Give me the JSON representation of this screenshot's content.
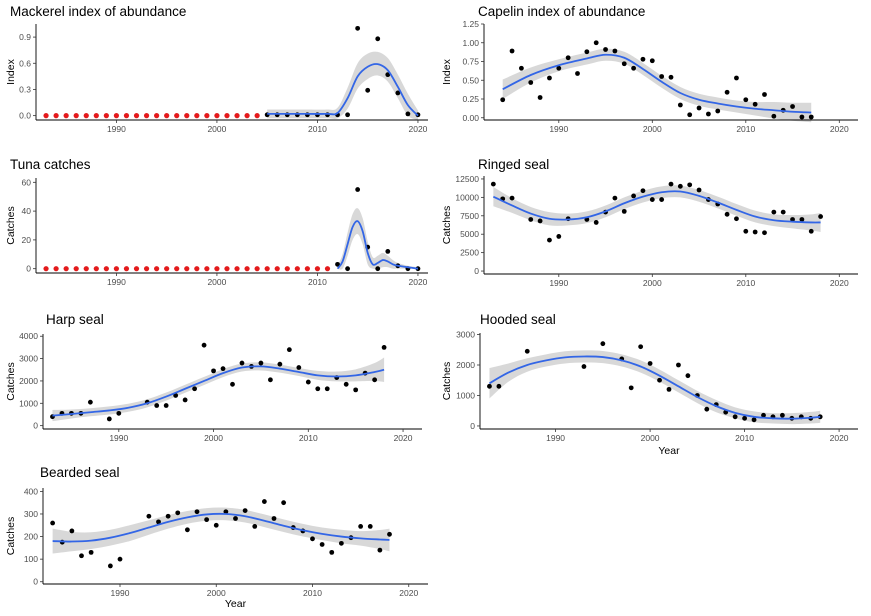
{
  "colors": {
    "smooth_line": "#3366e6",
    "confidence_band": "#d4d4d4",
    "observed_point": "#000000",
    "missing_point": "#e41a1c",
    "axis": "#000000"
  },
  "chart_data": [
    {
      "type": "scatter",
      "title": "Mackerel index of abundance",
      "xlabel": "",
      "ylabel": "Index",
      "xlim": [
        1982,
        2021
      ],
      "ylim": [
        -0.05,
        1.05
      ],
      "xticks": [
        1990,
        2000,
        2010,
        2020
      ],
      "yticks": [
        0.0,
        0.3,
        0.6,
        0.9
      ],
      "ytick_labels": [
        "0.0",
        "0.3",
        "0.6",
        "0.9"
      ],
      "grid": false,
      "missing_points": {
        "x": [
          1983,
          1984,
          1985,
          1986,
          1987,
          1988,
          1989,
          1990,
          1991,
          1992,
          1993,
          1994,
          1995,
          1996,
          1997,
          1998,
          1999,
          2000,
          2001,
          2002,
          2003,
          2004
        ],
        "y_baseline": 0
      },
      "points": {
        "x": [
          2005,
          2006,
          2007,
          2008,
          2009,
          2010,
          2011,
          2012,
          2013,
          2014,
          2015,
          2016,
          2017,
          2018,
          2019,
          2020
        ],
        "y": [
          0.01,
          0.01,
          0.01,
          0.01,
          0.01,
          0.01,
          0.01,
          0.01,
          0.01,
          1.0,
          0.29,
          0.88,
          0.47,
          0.26,
          0.02,
          0.01
        ]
      },
      "smooth": {
        "x": [
          2005,
          2007,
          2009,
          2011,
          2012,
          2013,
          2014,
          2015,
          2016,
          2017,
          2018,
          2019,
          2020
        ],
        "y": [
          0.02,
          0.02,
          0.02,
          0.02,
          0.03,
          0.2,
          0.45,
          0.56,
          0.59,
          0.52,
          0.33,
          0.12,
          0.0
        ],
        "lower": [
          -0.03,
          -0.03,
          -0.03,
          -0.03,
          -0.03,
          0.08,
          0.31,
          0.42,
          0.46,
          0.39,
          0.2,
          0.0,
          -0.05
        ],
        "upper": [
          0.07,
          0.07,
          0.07,
          0.07,
          0.09,
          0.32,
          0.6,
          0.71,
          0.73,
          0.66,
          0.47,
          0.25,
          0.06
        ]
      }
    },
    {
      "type": "scatter",
      "title": "Capelin index of abundance",
      "xlabel": "",
      "ylabel": "Index",
      "xlim": [
        1982,
        2022
      ],
      "ylim": [
        -0.03,
        1.25
      ],
      "xticks": [
        1990,
        2000,
        2010,
        2020
      ],
      "yticks": [
        0.0,
        0.25,
        0.5,
        0.75,
        1.0,
        1.25
      ],
      "ytick_labels": [
        "0.00",
        "0.25",
        "0.50",
        "0.75",
        "1.00",
        "1.25"
      ],
      "grid": false,
      "points": {
        "x": [
          1984,
          1985,
          1986,
          1987,
          1988,
          1989,
          1990,
          1991,
          1992,
          1993,
          1994,
          1995,
          1996,
          1997,
          1998,
          1999,
          2000,
          2001,
          2002,
          2003,
          2004,
          2005,
          2006,
          2007,
          2008,
          2009,
          2010,
          2011,
          2012,
          2013,
          2014,
          2015,
          2016,
          2017
        ],
        "y": [
          0.24,
          0.89,
          0.66,
          0.47,
          0.27,
          0.53,
          0.66,
          0.8,
          0.59,
          0.88,
          1.0,
          0.91,
          0.89,
          0.72,
          0.66,
          0.78,
          0.76,
          0.55,
          0.54,
          0.17,
          0.04,
          0.13,
          0.05,
          0.09,
          0.34,
          0.53,
          0.24,
          0.18,
          0.31,
          0.02,
          0.1,
          0.15,
          0.01,
          0.01
        ]
      },
      "smooth": {
        "x": [
          1984,
          1987,
          1990,
          1993,
          1995,
          1997,
          1999,
          2001,
          2003,
          2005,
          2007,
          2009,
          2011,
          2013,
          2015,
          2017
        ],
        "y": [
          0.38,
          0.57,
          0.7,
          0.79,
          0.84,
          0.8,
          0.65,
          0.48,
          0.33,
          0.24,
          0.19,
          0.15,
          0.12,
          0.1,
          0.08,
          0.07
        ],
        "lower": [
          0.25,
          0.47,
          0.62,
          0.71,
          0.76,
          0.72,
          0.57,
          0.4,
          0.25,
          0.16,
          0.11,
          0.07,
          0.03,
          -0.01,
          -0.04,
          -0.06
        ],
        "upper": [
          0.51,
          0.67,
          0.78,
          0.87,
          0.92,
          0.88,
          0.73,
          0.56,
          0.41,
          0.32,
          0.27,
          0.23,
          0.21,
          0.21,
          0.2,
          0.2
        ]
      }
    },
    {
      "type": "scatter",
      "title": "Tuna catches",
      "xlabel": "",
      "ylabel": "Catches",
      "xlim": [
        1982,
        2021
      ],
      "ylim": [
        -3,
        63
      ],
      "xticks": [
        1990,
        2000,
        2010,
        2020
      ],
      "yticks": [
        0,
        20,
        40,
        60
      ],
      "ytick_labels": [
        "0",
        "20",
        "40",
        "60"
      ],
      "grid": false,
      "missing_points": {
        "x": [
          1983,
          1984,
          1985,
          1986,
          1987,
          1988,
          1989,
          1990,
          1991,
          1992,
          1993,
          1994,
          1995,
          1996,
          1997,
          1998,
          1999,
          2000,
          2001,
          2002,
          2003,
          2004,
          2005,
          2006,
          2007,
          2008,
          2009,
          2010,
          2011
        ],
        "y_baseline": 0
      },
      "points": {
        "x": [
          2012,
          2013,
          2014,
          2015,
          2016,
          2017,
          2018,
          2019,
          2020
        ],
        "y": [
          3,
          0,
          55,
          15,
          0,
          12,
          2,
          0,
          0
        ]
      },
      "smooth": {
        "x": [
          2012,
          2012.5,
          2013,
          2013.5,
          2014,
          2014.5,
          2015,
          2015.5,
          2016,
          2016.5,
          2017,
          2017.5,
          2018,
          2019,
          2020
        ],
        "y": [
          0,
          5,
          17,
          29,
          33,
          26,
          11,
          3,
          4,
          6,
          5,
          3,
          2,
          1,
          0
        ],
        "lower": [
          0,
          0,
          9,
          20,
          24,
          17,
          3,
          0,
          0,
          1,
          1,
          0,
          0,
          0,
          0
        ],
        "upper": [
          2,
          10,
          25,
          38,
          42,
          35,
          19,
          8,
          9,
          11,
          9,
          6,
          4,
          2,
          1
        ]
      }
    },
    {
      "type": "scatter",
      "title": "Ringed seal",
      "xlabel": "",
      "ylabel": "Catches",
      "xlim": [
        1982,
        2022
      ],
      "ylim": [
        -400,
        12900
      ],
      "xticks": [
        1990,
        2000,
        2010,
        2020
      ],
      "yticks": [
        0,
        2500,
        5000,
        7500,
        10000,
        12500
      ],
      "ytick_labels": [
        "0",
        "2500",
        "5000",
        "7500",
        "10000",
        "12500"
      ],
      "grid": false,
      "points": {
        "x": [
          1983,
          1984,
          1985,
          1987,
          1988,
          1989,
          1990,
          1991,
          1993,
          1994,
          1995,
          1996,
          1997,
          1998,
          1999,
          2000,
          2001,
          2002,
          2003,
          2004,
          2005,
          2006,
          2007,
          2008,
          2009,
          2010,
          2011,
          2012,
          2013,
          2014,
          2015,
          2016,
          2017,
          2018
        ],
        "y": [
          11800,
          9800,
          9900,
          7000,
          6800,
          4200,
          4700,
          7100,
          7000,
          6600,
          8000,
          9900,
          8100,
          10200,
          10900,
          9700,
          9700,
          11800,
          11500,
          11700,
          11000,
          9700,
          9100,
          7700,
          7100,
          5400,
          5300,
          5200,
          8000,
          8000,
          7000,
          7000,
          5400,
          7400
        ]
      },
      "smooth": {
        "x": [
          1983,
          1985,
          1987,
          1989,
          1991,
          1993,
          1995,
          1997,
          1999,
          2001,
          2003,
          2005,
          2007,
          2009,
          2011,
          2013,
          2015,
          2017,
          2018
        ],
        "y": [
          10100,
          8900,
          7800,
          7100,
          7000,
          7300,
          8100,
          9200,
          10100,
          10700,
          10800,
          10200,
          9300,
          8300,
          7400,
          6900,
          6700,
          6600,
          6600
        ],
        "lower": [
          8800,
          7900,
          6900,
          6200,
          6200,
          6500,
          7300,
          8400,
          9300,
          9900,
          10000,
          9400,
          8500,
          7500,
          6600,
          6100,
          5800,
          5500,
          5300
        ],
        "upper": [
          11400,
          9900,
          8700,
          8000,
          7800,
          8100,
          8900,
          10000,
          10900,
          11500,
          11600,
          11000,
          10100,
          9100,
          8200,
          7700,
          7600,
          7700,
          7900
        ]
      }
    },
    {
      "type": "scatter",
      "title": "Harp seal",
      "xlabel": "",
      "ylabel": "Catches",
      "xlim": [
        1982,
        2022
      ],
      "ylim": [
        -150,
        4100
      ],
      "xticks": [
        1990,
        2000,
        2010,
        2020
      ],
      "yticks": [
        0,
        1000,
        2000,
        3000,
        4000
      ],
      "ytick_labels": [
        "0",
        "1000",
        "2000",
        "3000",
        "4000"
      ],
      "grid": false,
      "points": {
        "x": [
          1983,
          1984,
          1985,
          1986,
          1987,
          1989,
          1990,
          1993,
          1994,
          1995,
          1996,
          1997,
          1998,
          1999,
          2000,
          2001,
          2002,
          2003,
          2004,
          2005,
          2006,
          2007,
          2008,
          2009,
          2010,
          2011,
          2012,
          2013,
          2014,
          2015,
          2016,
          2017,
          2018
        ],
        "y": [
          400,
          550,
          550,
          550,
          1050,
          300,
          550,
          1050,
          900,
          900,
          1350,
          1150,
          1650,
          3600,
          2450,
          2550,
          1850,
          2800,
          2650,
          2800,
          2050,
          2750,
          3400,
          2600,
          1950,
          1650,
          1650,
          2150,
          1850,
          1600,
          2350,
          2050,
          3500
        ]
      },
      "smooth": {
        "x": [
          1983,
          1985,
          1987,
          1989,
          1991,
          1993,
          1995,
          1997,
          1999,
          2001,
          2003,
          2005,
          2007,
          2009,
          2011,
          2013,
          2015,
          2017,
          2018
        ],
        "y": [
          450,
          520,
          600,
          680,
          800,
          1000,
          1300,
          1650,
          2000,
          2350,
          2600,
          2650,
          2550,
          2400,
          2250,
          2200,
          2250,
          2400,
          2500
        ],
        "lower": [
          200,
          320,
          420,
          500,
          620,
          820,
          1120,
          1470,
          1820,
          2170,
          2420,
          2470,
          2370,
          2220,
          2050,
          1980,
          1980,
          2000,
          1950
        ],
        "upper": [
          700,
          720,
          780,
          860,
          980,
          1180,
          1480,
          1830,
          2180,
          2530,
          2780,
          2830,
          2730,
          2580,
          2450,
          2420,
          2520,
          2800,
          3050
        ]
      }
    },
    {
      "type": "scatter",
      "title": "Hooded seal",
      "xlabel": "Year",
      "ylabel": "Catches",
      "xlim": [
        1982,
        2022
      ],
      "ylim": [
        -100,
        3050
      ],
      "xticks": [
        1990,
        2000,
        2010,
        2020
      ],
      "yticks": [
        0,
        1000,
        2000,
        3000
      ],
      "ytick_labels": [
        "0",
        "1000",
        "2000",
        "3000"
      ],
      "grid": false,
      "points": {
        "x": [
          1983,
          1984,
          1987,
          1993,
          1995,
          1997,
          1998,
          1999,
          2000,
          2001,
          2002,
          2003,
          2004,
          2005,
          2006,
          2007,
          2008,
          2009,
          2010,
          2011,
          2012,
          2013,
          2014,
          2015,
          2016,
          2017,
          2018
        ],
        "y": [
          1300,
          1300,
          2450,
          1950,
          2700,
          2200,
          1250,
          2600,
          2050,
          1500,
          1200,
          2000,
          1650,
          1000,
          550,
          700,
          450,
          300,
          250,
          200,
          350,
          300,
          350,
          250,
          300,
          250,
          300
        ]
      },
      "smooth": {
        "x": [
          1983,
          1985,
          1987,
          1989,
          1991,
          1993,
          1995,
          1997,
          1999,
          2001,
          2003,
          2005,
          2007,
          2009,
          2011,
          2013,
          2015,
          2017,
          2018
        ],
        "y": [
          1400,
          1750,
          2000,
          2150,
          2250,
          2280,
          2260,
          2150,
          1950,
          1650,
          1300,
          950,
          650,
          430,
          300,
          250,
          240,
          270,
          300
        ],
        "lower": [
          900,
          1450,
          1780,
          1950,
          2050,
          2080,
          2060,
          1950,
          1750,
          1450,
          1100,
          750,
          450,
          250,
          120,
          80,
          60,
          80,
          100
        ],
        "upper": [
          1900,
          2050,
          2220,
          2350,
          2450,
          2480,
          2460,
          2350,
          2150,
          1850,
          1500,
          1150,
          850,
          610,
          480,
          420,
          420,
          460,
          500
        ]
      }
    },
    {
      "type": "scatter",
      "title": "Bearded seal",
      "xlabel": "Year",
      "ylabel": "Catches",
      "xlim": [
        1982,
        2022
      ],
      "ylim": [
        -10,
        415
      ],
      "xticks": [
        1990,
        2000,
        2010,
        2020
      ],
      "yticks": [
        0,
        100,
        200,
        300,
        400
      ],
      "ytick_labels": [
        "0",
        "100",
        "200",
        "300",
        "400"
      ],
      "grid": false,
      "points": {
        "x": [
          1983,
          1984,
          1985,
          1986,
          1987,
          1989,
          1990,
          1993,
          1994,
          1995,
          1996,
          1997,
          1998,
          1999,
          2000,
          2001,
          2002,
          2003,
          2004,
          2005,
          2006,
          2007,
          2008,
          2009,
          2010,
          2011,
          2012,
          2013,
          2014,
          2015,
          2016,
          2017,
          2018
        ],
        "y": [
          260,
          175,
          225,
          115,
          130,
          70,
          100,
          290,
          265,
          290,
          305,
          230,
          310,
          275,
          250,
          310,
          280,
          315,
          245,
          355,
          280,
          350,
          240,
          225,
          190,
          165,
          130,
          170,
          195,
          245,
          245,
          140,
          210
        ]
      },
      "smooth": {
        "x": [
          1983,
          1985,
          1987,
          1989,
          1991,
          1993,
          1995,
          1997,
          1999,
          2001,
          2003,
          2005,
          2007,
          2009,
          2011,
          2013,
          2015,
          2017,
          2018
        ],
        "y": [
          180,
          178,
          182,
          195,
          215,
          240,
          265,
          285,
          298,
          300,
          290,
          270,
          248,
          228,
          212,
          200,
          192,
          187,
          185
        ],
        "lower": [
          125,
          135,
          145,
          160,
          180,
          208,
          235,
          257,
          270,
          272,
          262,
          242,
          220,
          200,
          184,
          170,
          160,
          145,
          135
        ],
        "upper": [
          235,
          221,
          219,
          230,
          250,
          272,
          295,
          313,
          326,
          328,
          318,
          298,
          276,
          256,
          240,
          230,
          224,
          229,
          235
        ]
      }
    }
  ]
}
